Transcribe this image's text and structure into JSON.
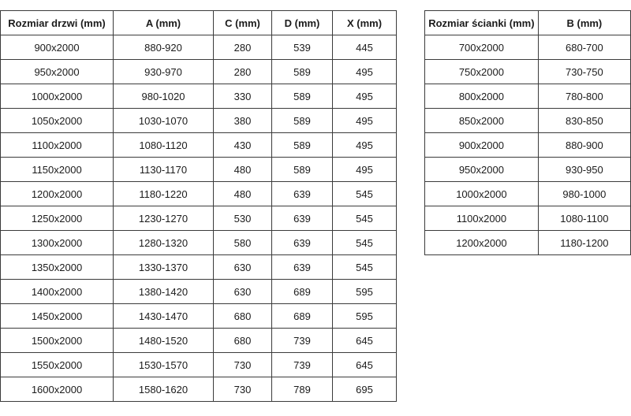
{
  "colors": {
    "border": "#3b3b3b",
    "text": "#1b1b1b",
    "background": "#ffffff"
  },
  "tables": [
    {
      "name": "door-sizes",
      "headers": [
        "Rozmiar drzwi (mm)",
        "A (mm)",
        "C (mm)",
        "D (mm)",
        "X (mm)"
      ],
      "rows": [
        [
          "900x2000",
          "880-920",
          "280",
          "539",
          "445"
        ],
        [
          "950x2000",
          "930-970",
          "280",
          "589",
          "495"
        ],
        [
          "1000x2000",
          "980-1020",
          "330",
          "589",
          "495"
        ],
        [
          "1050x2000",
          "1030-1070",
          "380",
          "589",
          "495"
        ],
        [
          "1100x2000",
          "1080-1120",
          "430",
          "589",
          "495"
        ],
        [
          "1150x2000",
          "1130-1170",
          "480",
          "589",
          "495"
        ],
        [
          "1200x2000",
          "1180-1220",
          "480",
          "639",
          "545"
        ],
        [
          "1250x2000",
          "1230-1270",
          "530",
          "639",
          "545"
        ],
        [
          "1300x2000",
          "1280-1320",
          "580",
          "639",
          "545"
        ],
        [
          "1350x2000",
          "1330-1370",
          "630",
          "639",
          "545"
        ],
        [
          "1400x2000",
          "1380-1420",
          "630",
          "689",
          "595"
        ],
        [
          "1450x2000",
          "1430-1470",
          "680",
          "689",
          "595"
        ],
        [
          "1500x2000",
          "1480-1520",
          "680",
          "739",
          "645"
        ],
        [
          "1550x2000",
          "1530-1570",
          "730",
          "739",
          "645"
        ],
        [
          "1600x2000",
          "1580-1620",
          "730",
          "789",
          "695"
        ]
      ]
    },
    {
      "name": "wall-sizes",
      "headers": [
        "Rozmiar ścianki (mm)",
        "B (mm)"
      ],
      "rows": [
        [
          "700x2000",
          "680-700"
        ],
        [
          "750x2000",
          "730-750"
        ],
        [
          "800x2000",
          "780-800"
        ],
        [
          "850x2000",
          "830-850"
        ],
        [
          "900x2000",
          "880-900"
        ],
        [
          "950x2000",
          "930-950"
        ],
        [
          "1000x2000",
          "980-1000"
        ],
        [
          "1100x2000",
          "1080-1100"
        ],
        [
          "1200x2000",
          "1180-1200"
        ]
      ]
    }
  ]
}
